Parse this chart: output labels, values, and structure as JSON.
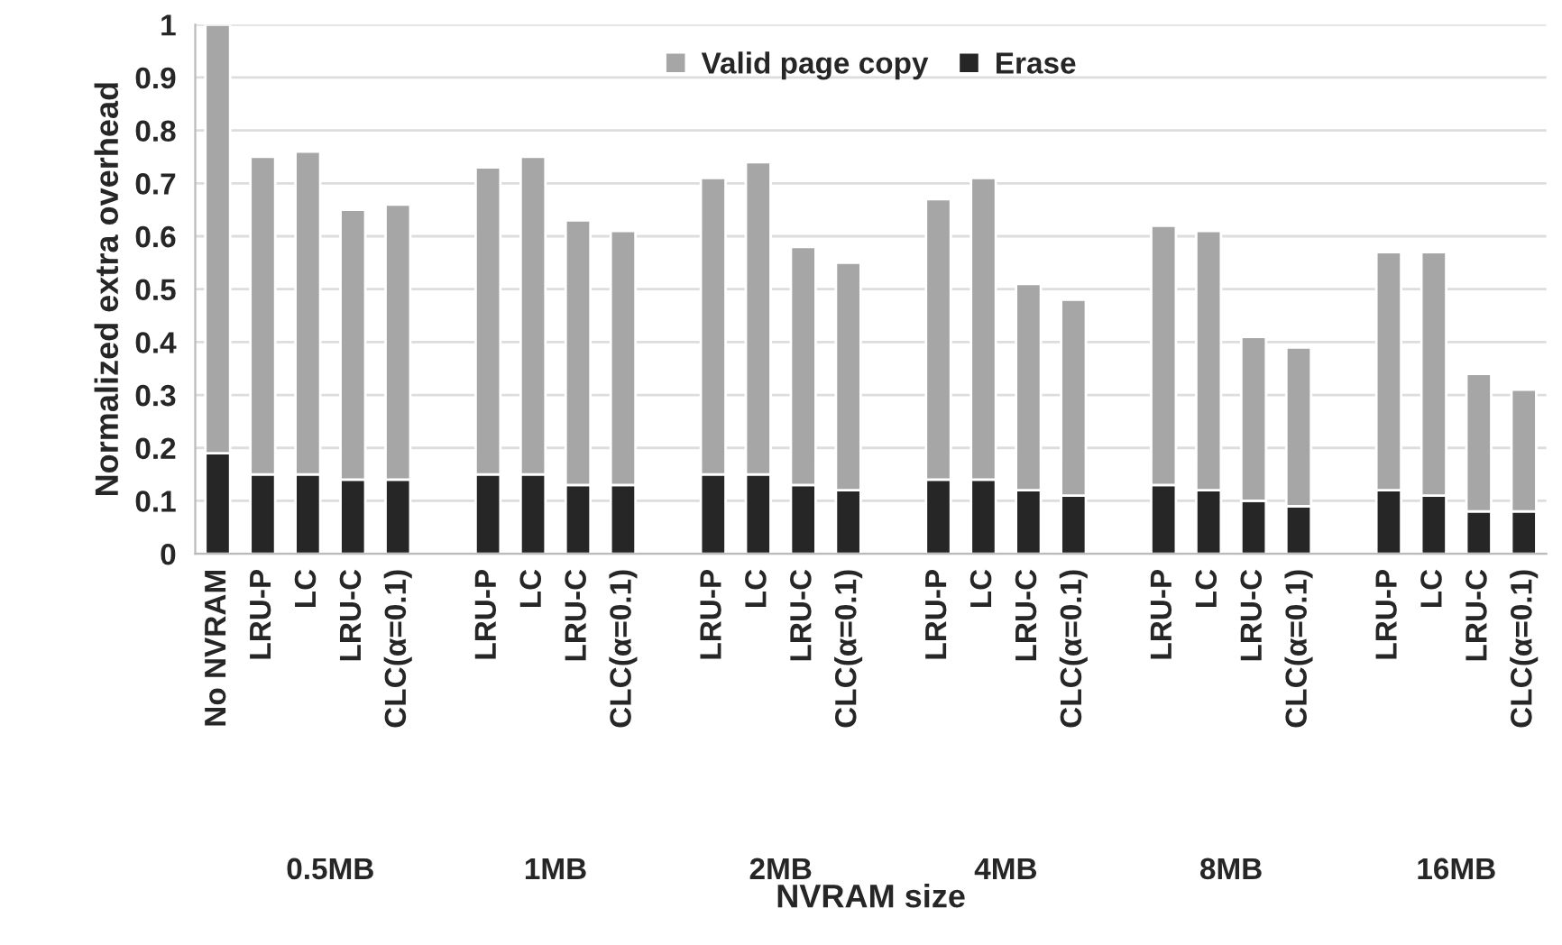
{
  "chart_data": {
    "type": "bar",
    "stacked": true,
    "xlabel": "NVRAM size",
    "ylabel": "Normalized extra overhead",
    "categories": [
      "No NVRAM",
      "LRU-P",
      "LC",
      "LRU-C",
      "CLC(α=0.1)",
      null,
      "LRU-P",
      "LC",
      "LRU-C",
      "CLC(α=0.1)",
      null,
      "LRU-P",
      "LC",
      "LRU-C",
      "CLC(α=0.1)",
      null,
      "LRU-P",
      "LC",
      "LRU-C",
      "CLC(α=0.1)",
      null,
      "LRU-P",
      "LC",
      "LRU-C",
      "CLC(α=0.1)",
      null,
      "LRU-P",
      "LC",
      "LRU-C",
      "CLC(α=0.1)"
    ],
    "series": [
      {
        "name": "Erase",
        "color": "#262626",
        "values": [
          0.19,
          0.15,
          0.15,
          0.14,
          0.14,
          null,
          0.15,
          0.15,
          0.13,
          0.13,
          null,
          0.15,
          0.15,
          0.13,
          0.12,
          null,
          0.14,
          0.14,
          0.12,
          0.11,
          null,
          0.13,
          0.12,
          0.1,
          0.09,
          null,
          0.12,
          0.11,
          0.08,
          0.08
        ]
      },
      {
        "name": "Valid page copy",
        "color": "#a6a6a6",
        "values": [
          0.81,
          0.6,
          0.61,
          0.51,
          0.52,
          null,
          0.58,
          0.6,
          0.5,
          0.48,
          null,
          0.56,
          0.59,
          0.45,
          0.43,
          null,
          0.53,
          0.57,
          0.39,
          0.37,
          null,
          0.49,
          0.49,
          0.31,
          0.3,
          null,
          0.45,
          0.46,
          0.26,
          0.23
        ]
      }
    ],
    "annotations": [
      "0.5MB",
      "1MB",
      "2MB",
      "4MB",
      "8MB",
      "16MB"
    ],
    "ylim": [
      0,
      1
    ],
    "yticks": [
      0,
      0.1,
      0.2,
      0.3,
      0.4,
      0.5,
      0.6,
      0.7,
      0.8,
      0.9,
      1
    ],
    "grid": "y",
    "legend": "top"
  }
}
